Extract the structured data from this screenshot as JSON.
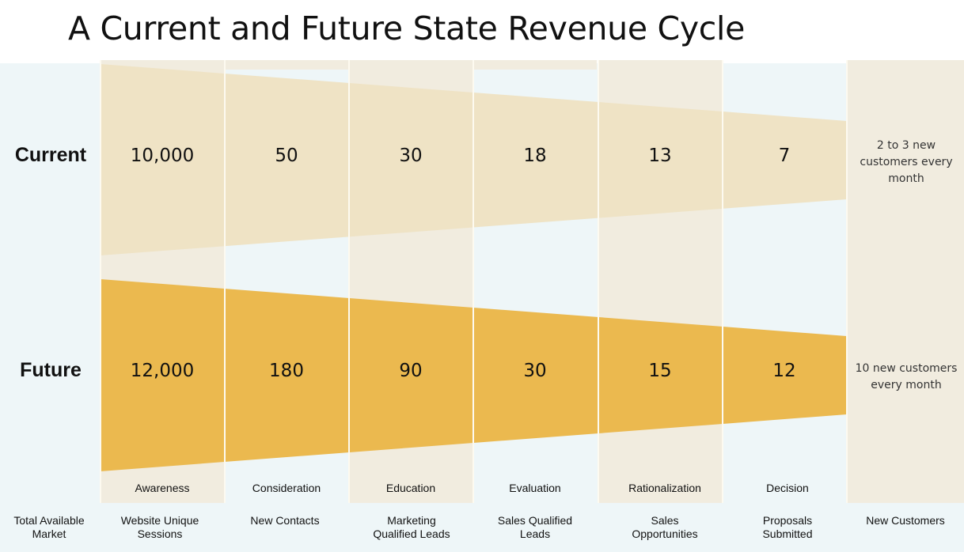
{
  "title": "A Current and Future State Revenue Cycle",
  "rows": {
    "current": {
      "label": "Current",
      "values": [
        "10,000",
        "50",
        "30",
        "18",
        "13",
        "7"
      ],
      "outcome": [
        "2 to 3 new",
        "customers every",
        "month"
      ]
    },
    "future": {
      "label": "Future",
      "values": [
        "12,000",
        "180",
        "90",
        "30",
        "15",
        "12"
      ],
      "outcome": [
        "10 new customers",
        "every month"
      ]
    }
  },
  "stages": [
    "Awareness",
    "Consideration",
    "Education",
    "Evaluation",
    "Rationalization",
    "Decision"
  ],
  "metrics": {
    "first": [
      "Total Available",
      "Market"
    ],
    "columns": [
      [
        "Website Unique",
        "Sessions"
      ],
      [
        "New Contacts"
      ],
      [
        "Marketing",
        "Qualified Leads"
      ],
      [
        "Sales Qualified",
        "Leads"
      ],
      [
        "Sales",
        "Opportunities"
      ],
      [
        "Proposals",
        "Submitted"
      ]
    ],
    "last": [
      "New Customers"
    ]
  },
  "colors": {
    "background": "#eef6f8",
    "column_band": "#f1ecdf",
    "current_funnel": "#efe3c5",
    "future_funnel": "#ebb94f",
    "divider": "#fdfaf0"
  }
}
